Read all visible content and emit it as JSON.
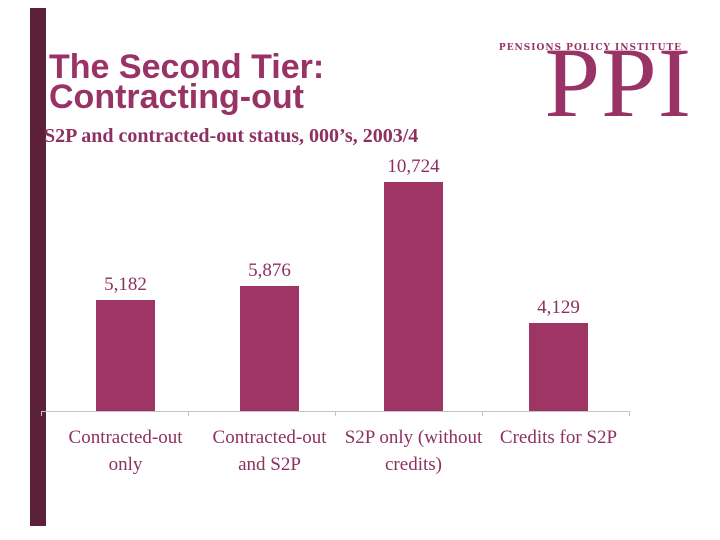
{
  "slide": {
    "title_lines": [
      "The Second Tier:",
      "Contracting-out"
    ],
    "accent_color": "#993366",
    "left_bar_color": "#5c2038",
    "background_color": "#ffffff"
  },
  "logo": {
    "org_name": "PENSIONS POLICY INSTITUTE",
    "monogram": "PPI",
    "color": "#993366"
  },
  "chart_data": {
    "type": "bar",
    "title": "S2P and contracted-out status, 000’s, 2003/4",
    "categories": [
      "Contracted-out only",
      "Contracted-out and S2P",
      "S2P only (without credits)",
      "Credits for S2P"
    ],
    "category_lines": [
      [
        "Contracted-out",
        "only"
      ],
      [
        "Contracted-out",
        "and S2P"
      ],
      [
        "S2P only (without",
        "credits)"
      ],
      [
        "Credits for S2P"
      ]
    ],
    "values": [
      5182,
      5876,
      10724,
      4129
    ],
    "value_labels": [
      "5,182",
      "5,876",
      "10,724",
      "4,129"
    ],
    "xlabel": "",
    "ylabel": "",
    "ylim": [
      0,
      10724
    ],
    "grid": false,
    "legend": false,
    "y_axis_shown": false,
    "bar_color": "#9e3565",
    "text_color": "#8e3060",
    "axis_color": "#c4c4c4"
  }
}
